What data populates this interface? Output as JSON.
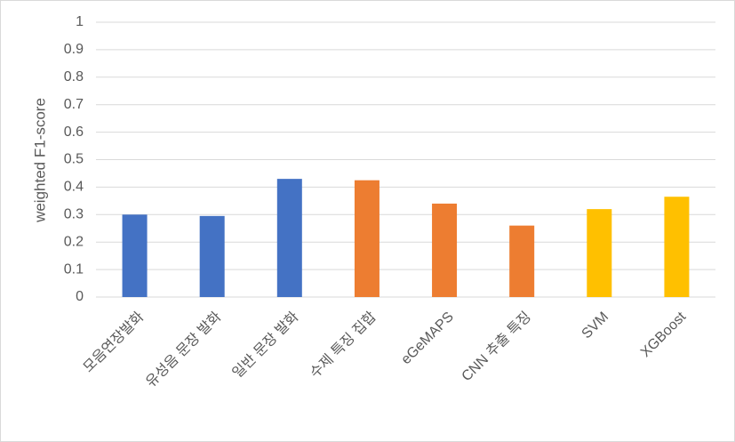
{
  "chart_data": {
    "type": "bar",
    "y_label": "weighted F1-score",
    "categories": [
      "모음연장발화",
      "유성음 문장 발화",
      "일반 문장 발화",
      "수제 특징 집합",
      "eGeMAPS",
      "CNN 추출 특징",
      "SVM",
      "XGBoost"
    ],
    "values": [
      0.3,
      0.295,
      0.43,
      0.425,
      0.34,
      0.26,
      0.32,
      0.365
    ],
    "colors": [
      "#4472c4",
      "#4472c4",
      "#4472c4",
      "#ed7d31",
      "#ed7d31",
      "#ed7d31",
      "#ffc000",
      "#ffc000"
    ],
    "ylim": [
      0,
      1
    ],
    "yticks": [
      0,
      0.1,
      0.2,
      0.3,
      0.4,
      0.5,
      0.6,
      0.7,
      0.8,
      0.9,
      1
    ],
    "grid": true
  }
}
